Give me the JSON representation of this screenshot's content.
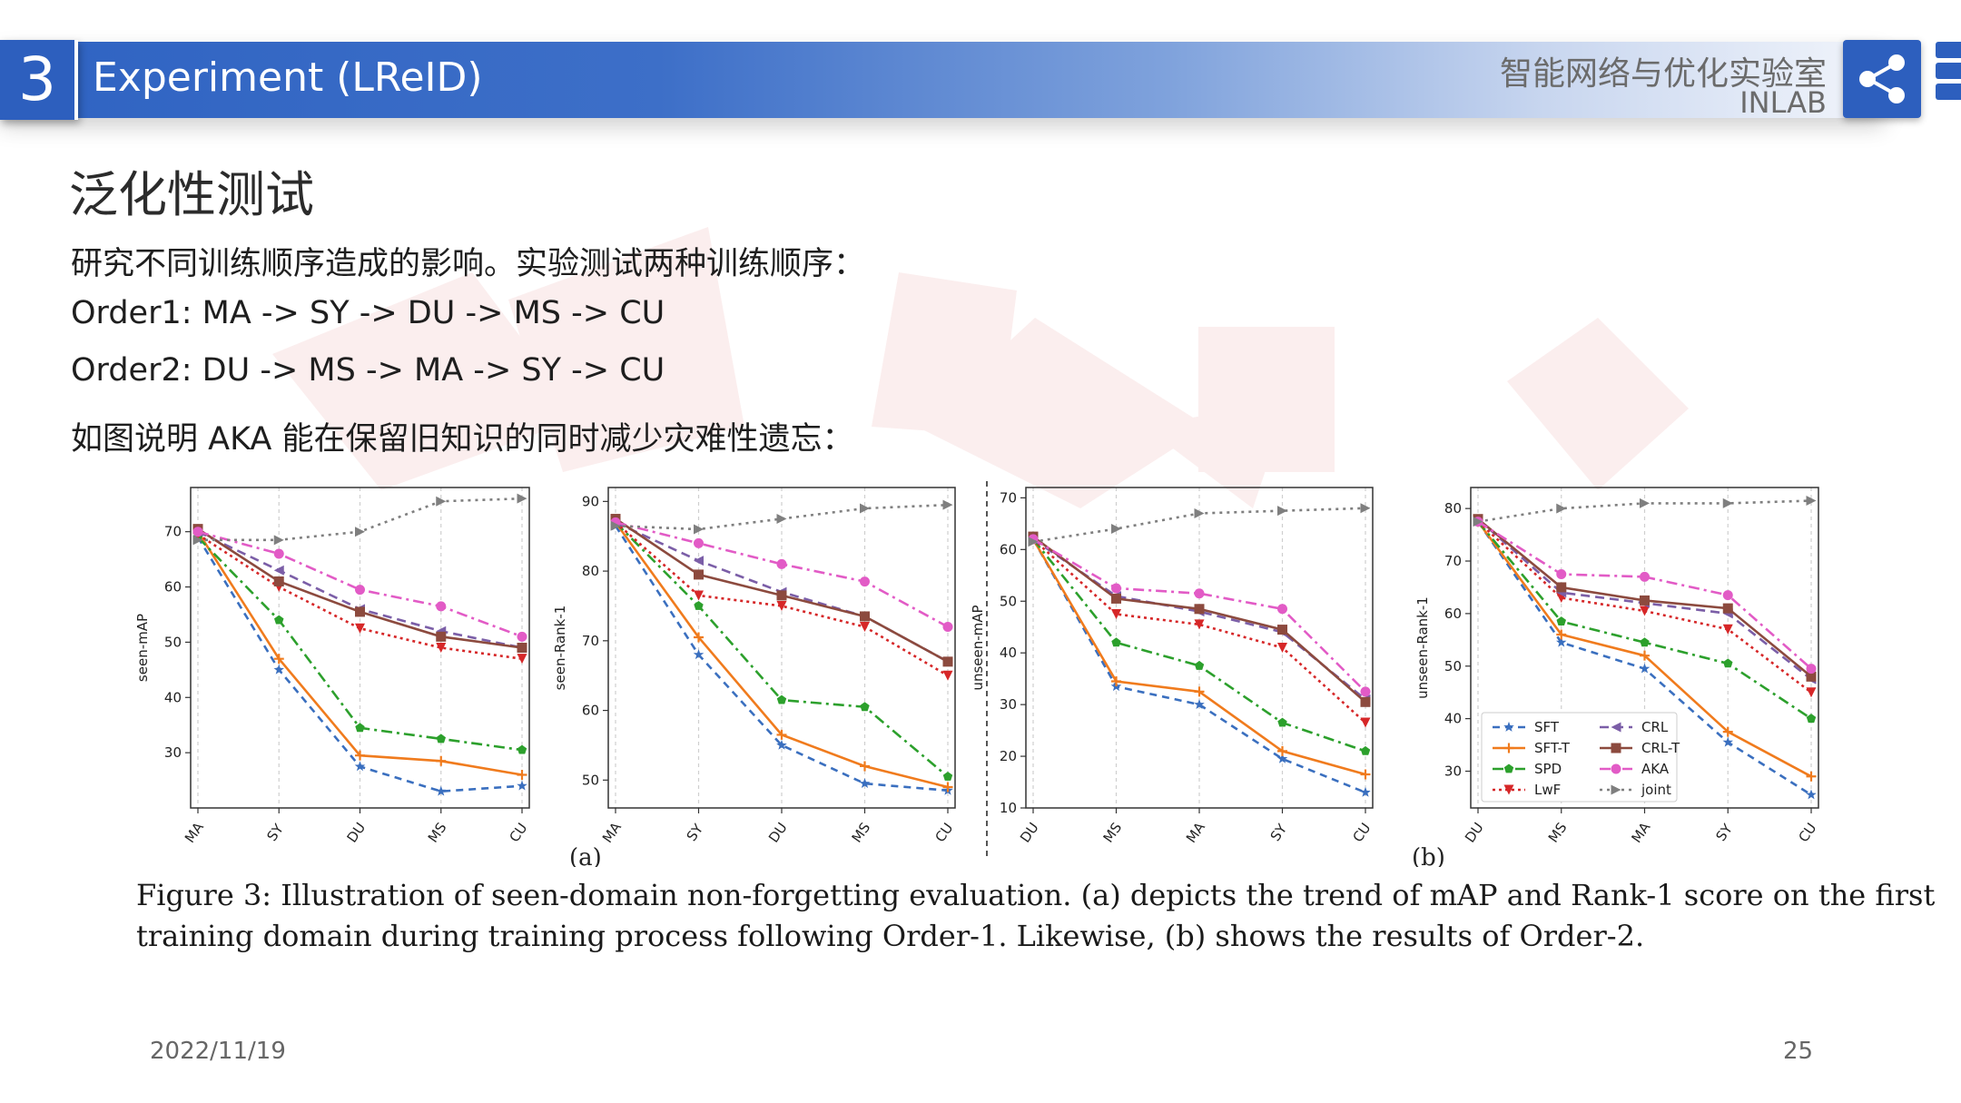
{
  "header": {
    "section_number": "3",
    "title": "Experiment (LReID)",
    "lab_name_cn": "智能网络与优化实验室",
    "lab_name_en": "INLAB",
    "share_icon": "share-icon"
  },
  "content": {
    "subtitle": "泛化性测试",
    "lines": [
      "研究不同训练顺序造成的影响。实验测试两种训练顺序：",
      "Order1: MA -> SY -> DU -> MS -> CU",
      "Order2: DU -> MS -> MA -> SY -> CU",
      "如图说明 AKA 能在保留旧知识的同时减少灾难性遗忘："
    ]
  },
  "figure": {
    "panel_a_label": "(a)",
    "panel_b_label": "(b)",
    "caption_line1": "Figure 3: Illustration of seen-domain non-forgetting evaluation. (a) depicts the trend of mAP and Rank-1 score on the first",
    "caption_line2": "training domain during training process following Order-1. Likewise, (b) shows the results of Order-2."
  },
  "footer": {
    "date": "2022/11/19",
    "page": "25"
  },
  "colors": {
    "SFT": "#3a6fbf",
    "SFT-T": "#f07b1d",
    "SPD": "#2ca02c",
    "LwF": "#d62728",
    "CRL": "#7b5ea7",
    "CRL-T": "#8c4a3e",
    "AKA": "#e25bc6",
    "joint": "#7f7f7f",
    "header_blue": "#2d5fbe"
  },
  "chart_data": [
    {
      "type": "line",
      "ylabel": "seen-mAP",
      "categories": [
        "MA",
        "SY",
        "DU",
        "MS",
        "CU"
      ],
      "ylim": [
        20,
        78
      ],
      "yticks": [
        30,
        40,
        50,
        60,
        70
      ],
      "series": [
        {
          "name": "SFT",
          "values": [
            69,
            45,
            27.5,
            23,
            24
          ]
        },
        {
          "name": "SFT-T",
          "values": [
            70,
            47,
            29.5,
            28.5,
            26
          ]
        },
        {
          "name": "SPD",
          "values": [
            69,
            54,
            34.5,
            32.5,
            30.5
          ]
        },
        {
          "name": "LwF",
          "values": [
            69.5,
            60,
            52.5,
            49,
            47
          ]
        },
        {
          "name": "CRL",
          "values": [
            70,
            63,
            56,
            52,
            49
          ]
        },
        {
          "name": "CRL-T",
          "values": [
            70.5,
            61,
            55.5,
            51,
            49
          ]
        },
        {
          "name": "AKA",
          "values": [
            70,
            66,
            59.5,
            56.5,
            51
          ]
        },
        {
          "name": "joint",
          "values": [
            68.5,
            68.5,
            70,
            75.5,
            76
          ]
        }
      ]
    },
    {
      "type": "line",
      "ylabel": "seen-Rank-1",
      "categories": [
        "MA",
        "SY",
        "DU",
        "MS",
        "CU"
      ],
      "ylim": [
        46,
        92
      ],
      "yticks": [
        50,
        60,
        70,
        80,
        90
      ],
      "series": [
        {
          "name": "SFT",
          "values": [
            86.5,
            68,
            55,
            49.5,
            48.5
          ]
        },
        {
          "name": "SFT-T",
          "values": [
            87,
            70.5,
            56.5,
            52,
            49
          ]
        },
        {
          "name": "SPD",
          "values": [
            87,
            75,
            61.5,
            60.5,
            50.5
          ]
        },
        {
          "name": "LwF",
          "values": [
            87,
            76.5,
            75,
            72,
            65
          ]
        },
        {
          "name": "CRL",
          "values": [
            87,
            81.5,
            77,
            73.5,
            67
          ]
        },
        {
          "name": "CRL-T",
          "values": [
            87.5,
            79.5,
            76.5,
            73.5,
            67
          ]
        },
        {
          "name": "AKA",
          "values": [
            87,
            84,
            81,
            78.5,
            72
          ]
        },
        {
          "name": "joint",
          "values": [
            86.5,
            86,
            87.5,
            89,
            89.5
          ]
        }
      ]
    },
    {
      "type": "line",
      "ylabel": "unseen-mAP",
      "categories": [
        "DU",
        "MS",
        "MA",
        "SY",
        "CU"
      ],
      "ylim": [
        10,
        72
      ],
      "yticks": [
        10,
        20,
        30,
        40,
        50,
        60,
        70
      ],
      "series": [
        {
          "name": "SFT",
          "values": [
            62,
            33.5,
            30,
            19.5,
            13
          ]
        },
        {
          "name": "SFT-T",
          "values": [
            62,
            34.5,
            32.5,
            21,
            16.5
          ]
        },
        {
          "name": "SPD",
          "values": [
            62,
            42,
            37.5,
            26.5,
            21
          ]
        },
        {
          "name": "LwF",
          "values": [
            62,
            47.5,
            45.5,
            41,
            26.5
          ]
        },
        {
          "name": "CRL",
          "values": [
            62,
            51,
            48,
            44,
            31
          ]
        },
        {
          "name": "CRL-T",
          "values": [
            62.5,
            50.5,
            48.5,
            44.5,
            30.5
          ]
        },
        {
          "name": "AKA",
          "values": [
            62,
            52.5,
            51.5,
            48.5,
            32.5
          ]
        },
        {
          "name": "joint",
          "values": [
            61.5,
            64,
            67,
            67.5,
            68
          ]
        }
      ]
    },
    {
      "type": "line",
      "ylabel": "unseen-Rank-1",
      "categories": [
        "DU",
        "MS",
        "MA",
        "SY",
        "CU"
      ],
      "ylim": [
        23,
        84
      ],
      "yticks": [
        30,
        40,
        50,
        60,
        70,
        80
      ],
      "legend_position": "lower-left",
      "series": [
        {
          "name": "SFT",
          "values": [
            77.5,
            54.5,
            49.5,
            35.5,
            25.5
          ]
        },
        {
          "name": "SFT-T",
          "values": [
            77.5,
            56,
            52,
            37.5,
            29
          ]
        },
        {
          "name": "SPD",
          "values": [
            77.5,
            58.5,
            54.5,
            50.5,
            40
          ]
        },
        {
          "name": "LwF",
          "values": [
            77.5,
            63,
            60.5,
            57,
            45
          ]
        },
        {
          "name": "CRL",
          "values": [
            78,
            64,
            62,
            60,
            47.5
          ]
        },
        {
          "name": "CRL-T",
          "values": [
            78,
            65,
            62.5,
            61,
            48
          ]
        },
        {
          "name": "AKA",
          "values": [
            77.5,
            67.5,
            67,
            63.5,
            49.5
          ]
        },
        {
          "name": "joint",
          "values": [
            77.5,
            80,
            81,
            81,
            81.5
          ]
        }
      ]
    }
  ]
}
